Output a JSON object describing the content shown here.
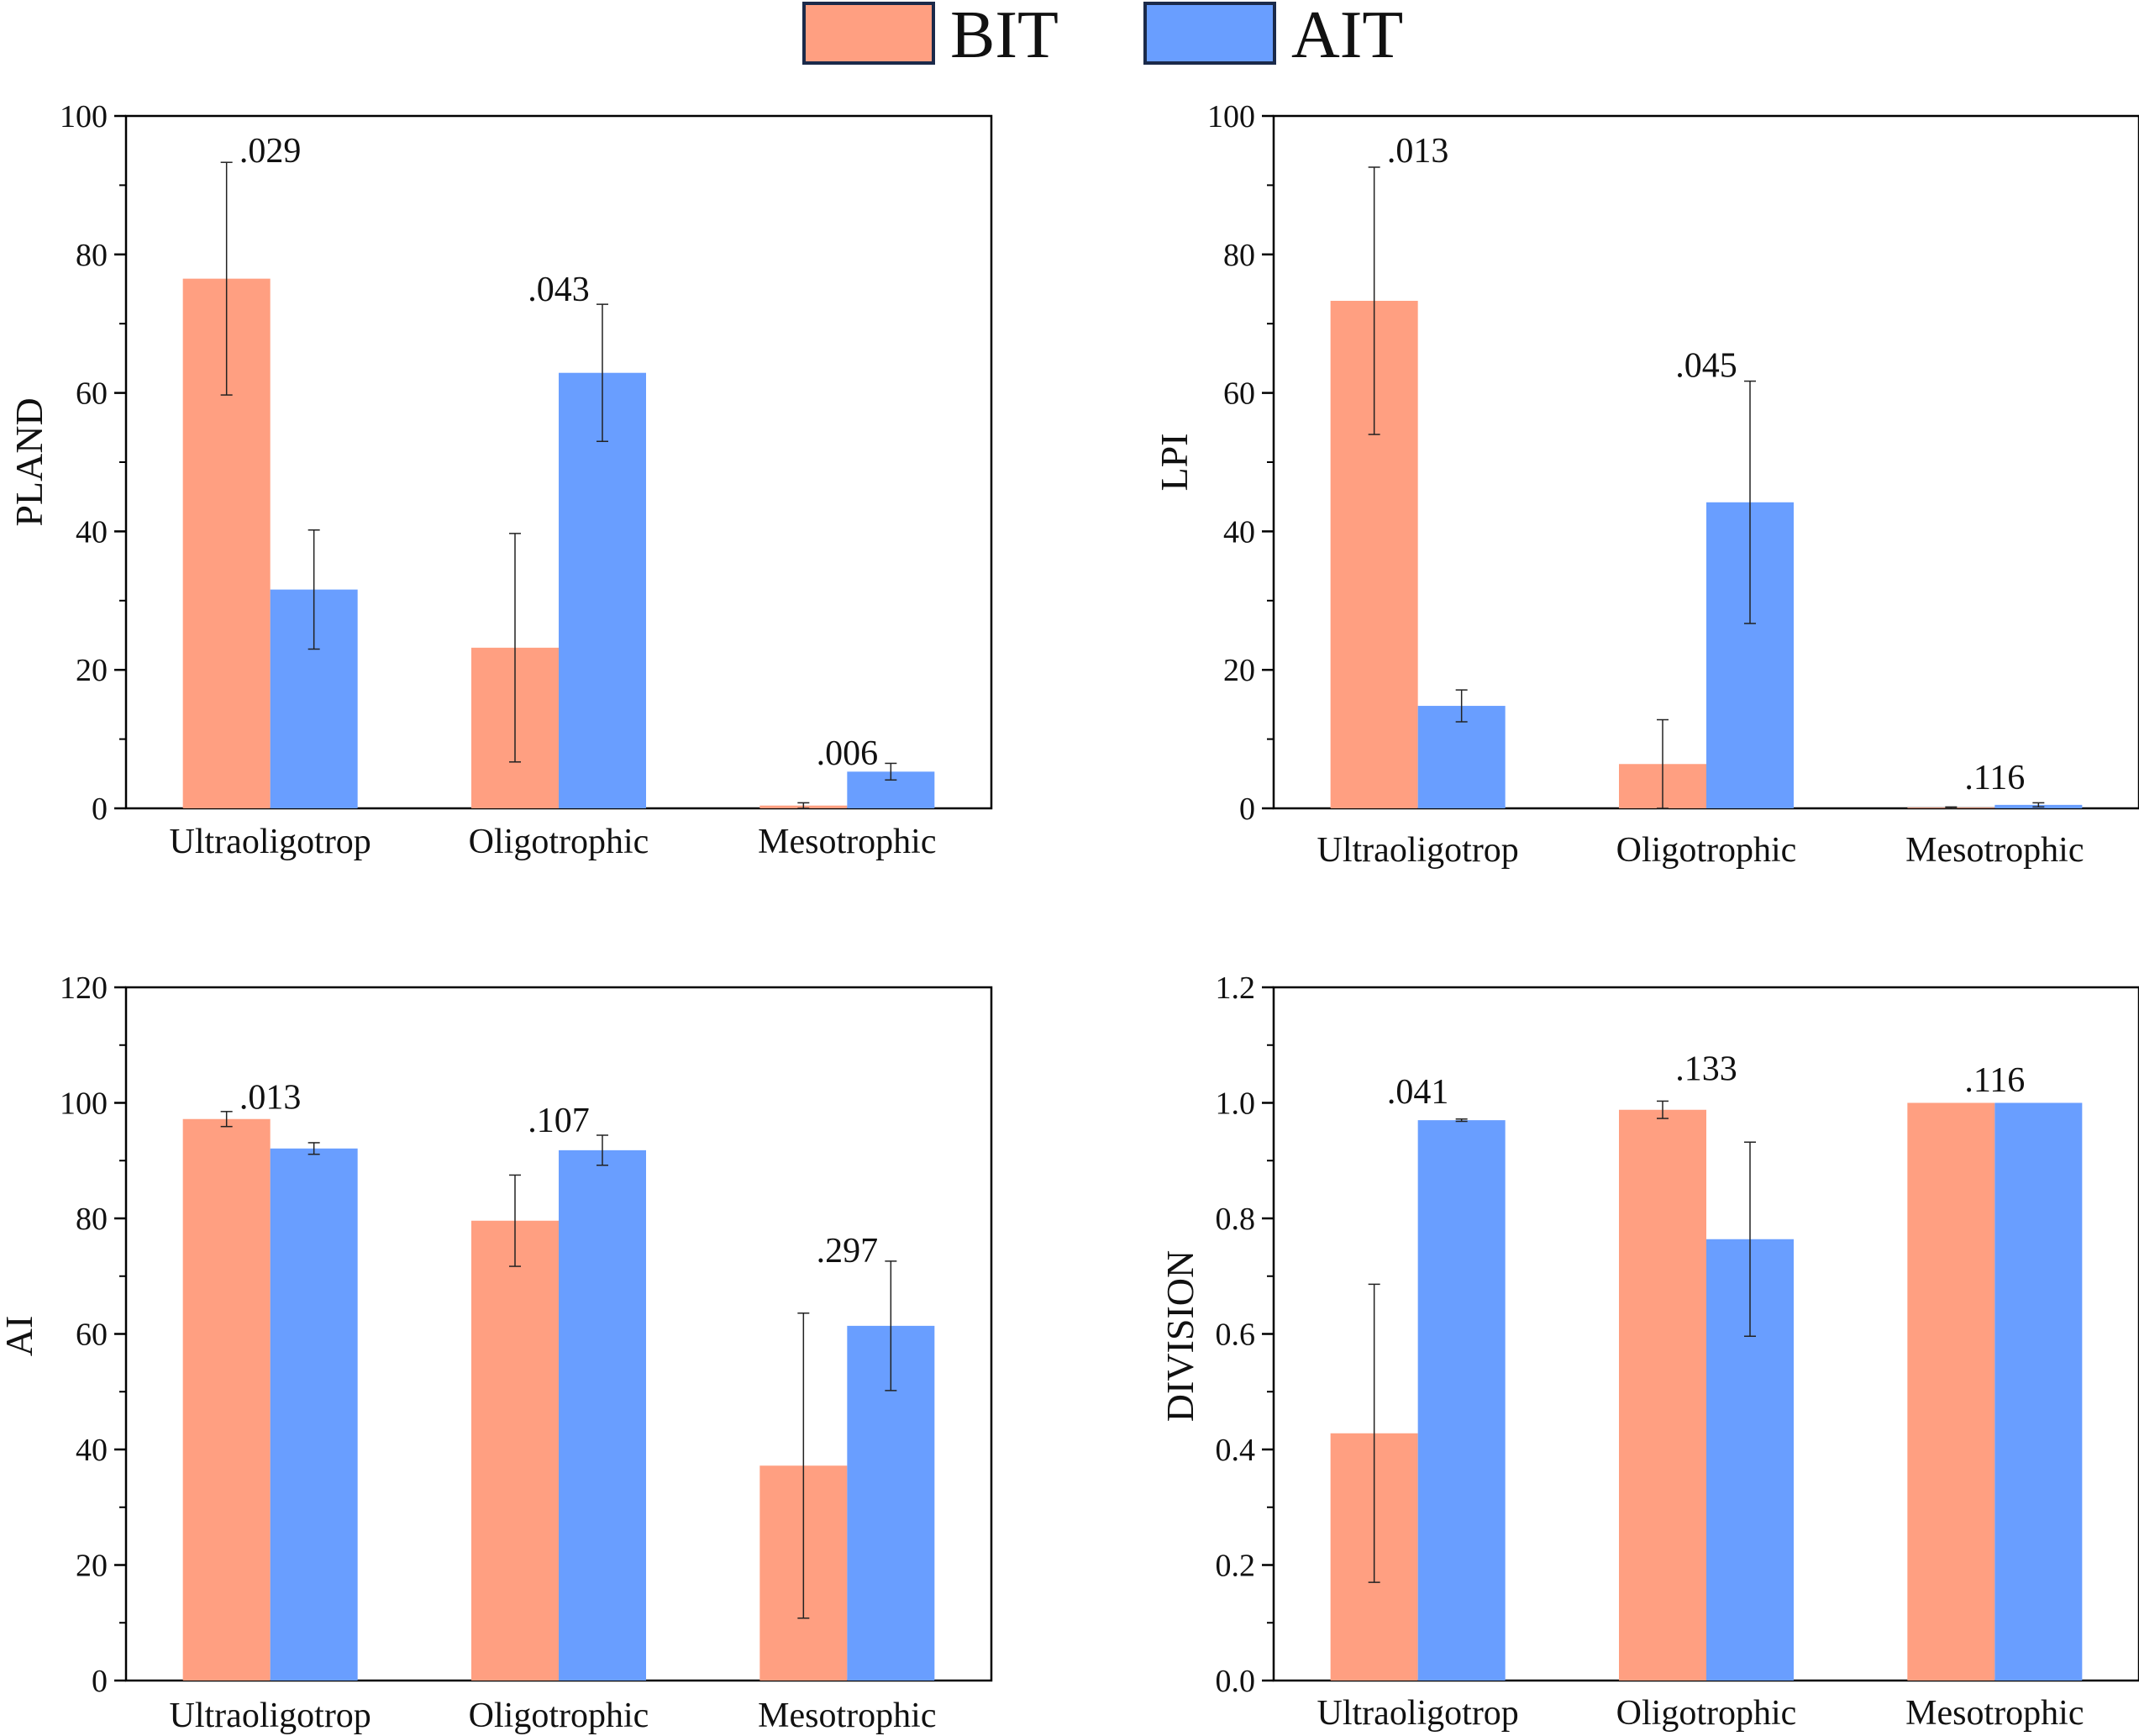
{
  "legend": {
    "items": [
      {
        "label": "BIT",
        "color": "#FF9F81"
      },
      {
        "label": "AIT",
        "color": "#699EFF"
      }
    ],
    "border_color": "#1B2A4A"
  },
  "chart_data": [
    {
      "type": "bar",
      "ylabel": "PLAND",
      "ylim": [
        0,
        100
      ],
      "yticks": [
        0,
        20,
        40,
        60,
        80,
        100
      ],
      "categories": [
        "Ultraoligotrop",
        "Oligotrophic",
        "Mesotrophic"
      ],
      "series": [
        {
          "name": "BIT",
          "color": "#FF9F81",
          "values": [
            76.5,
            23.2,
            0.4
          ],
          "errors": [
            16.8,
            16.5,
            0.4
          ]
        },
        {
          "name": "AIT",
          "color": "#699EFF",
          "values": [
            31.6,
            62.9,
            5.3
          ],
          "errors": [
            8.6,
            9.9,
            1.2
          ]
        }
      ],
      "p_values": [
        ".029",
        ".043",
        ".006"
      ],
      "p_value_y": [
        95,
        75,
        8
      ]
    },
    {
      "type": "bar",
      "ylabel": "LPI",
      "ylim": [
        0,
        100
      ],
      "yticks": [
        0,
        20,
        40,
        60,
        80,
        100
      ],
      "categories": [
        "Ultraoligotrop",
        "Oligotrophic",
        "Mesotrophic"
      ],
      "series": [
        {
          "name": "BIT",
          "color": "#FF9F81",
          "values": [
            73.3,
            6.4,
            0.1
          ],
          "errors": [
            19.3,
            6.4,
            0.1
          ]
        },
        {
          "name": "AIT",
          "color": "#699EFF",
          "values": [
            14.8,
            44.2,
            0.5
          ],
          "errors": [
            2.3,
            17.5,
            0.3
          ]
        }
      ],
      "p_values": [
        ".013",
        ".045",
        ".116"
      ],
      "p_value_y": [
        95,
        64,
        4.5
      ]
    },
    {
      "type": "bar",
      "ylabel": "AI",
      "ylim": [
        0,
        120
      ],
      "yticks": [
        0,
        20,
        40,
        60,
        80,
        100,
        120
      ],
      "categories": [
        "Ultraoligotrop",
        "Oligotrophic",
        "Mesotrophic"
      ],
      "series": [
        {
          "name": "BIT",
          "color": "#FF9F81",
          "values": [
            97.2,
            79.6,
            37.2
          ],
          "errors": [
            1.3,
            7.9,
            26.4
          ]
        },
        {
          "name": "AIT",
          "color": "#699EFF",
          "values": [
            92.1,
            91.8,
            61.4
          ],
          "errors": [
            1.0,
            2.6,
            11.2
          ]
        }
      ],
      "p_values": [
        ".013",
        ".107",
        ".297"
      ],
      "p_value_y": [
        101,
        97,
        74.5
      ]
    },
    {
      "type": "bar",
      "ylabel": "DIVISION",
      "ylim": [
        0,
        1.2
      ],
      "yticks": [
        0.0,
        0.2,
        0.4,
        0.6,
        0.8,
        1.0,
        1.2
      ],
      "tick_decimals": 1,
      "categories": [
        "Ultraoligotrop",
        "Oligotrophic",
        "Mesotrophic"
      ],
      "series": [
        {
          "name": "BIT",
          "color": "#FF9F81",
          "values": [
            0.428,
            0.988,
            1.0
          ],
          "errors": [
            0.258,
            0.015,
            0.0
          ]
        },
        {
          "name": "AIT",
          "color": "#699EFF",
          "values": [
            0.97,
            0.764,
            1.0
          ],
          "errors": [
            0.002,
            0.168,
            0.0
          ]
        }
      ],
      "p_values": [
        ".041",
        ".133",
        ".116"
      ],
      "p_value_y": [
        1.02,
        1.06,
        1.04
      ]
    }
  ]
}
